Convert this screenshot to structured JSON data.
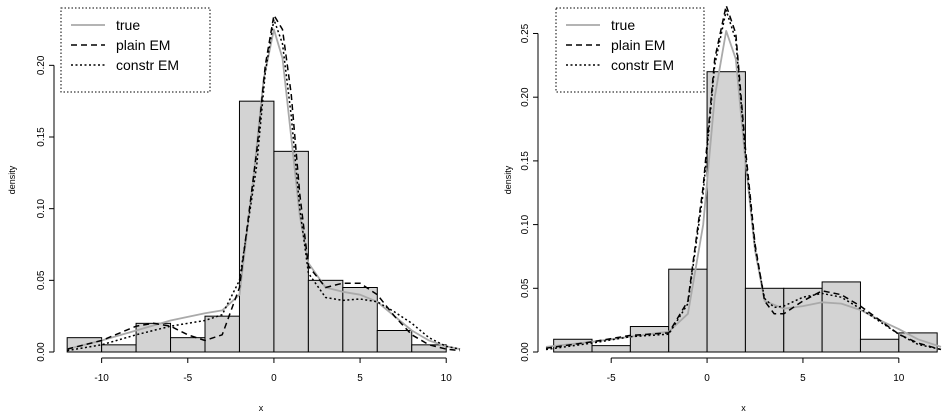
{
  "colors": {
    "bar_fill": "#d3d3d3",
    "true_line": "#aaaaaa",
    "ink": "#000000"
  },
  "chart_data": [
    {
      "type": "histogram",
      "xlabel": "x",
      "ylabel": "density",
      "xlim": [
        -12.3,
        10.8
      ],
      "ylim": [
        0,
        0.24
      ],
      "xticks": [
        -10,
        -5,
        0,
        5,
        10
      ],
      "yticks": [
        0.0,
        0.05,
        0.1,
        0.15,
        0.2
      ],
      "ytick_labels": [
        "0.00",
        "0.05",
        "0.10",
        "0.15",
        "0.20"
      ],
      "legend_position": "top-left",
      "bins": [
        {
          "x0": -12,
          "x1": -10,
          "density": 0.01
        },
        {
          "x0": -10,
          "x1": -8,
          "density": 0.005
        },
        {
          "x0": -8,
          "x1": -6,
          "density": 0.02
        },
        {
          "x0": -6,
          "x1": -4,
          "density": 0.01
        },
        {
          "x0": -4,
          "x1": -2,
          "density": 0.025
        },
        {
          "x0": -2,
          "x1": 0,
          "density": 0.175
        },
        {
          "x0": 0,
          "x1": 2,
          "density": 0.14
        },
        {
          "x0": 2,
          "x1": 4,
          "density": 0.05
        },
        {
          "x0": 4,
          "x1": 6,
          "density": 0.045
        },
        {
          "x0": 6,
          "x1": 8,
          "density": 0.015
        },
        {
          "x0": 8,
          "x1": 10,
          "density": 0.005
        }
      ],
      "series": [
        {
          "name": "true",
          "style": "solid",
          "color": "#aaaaaa",
          "points": [
            [
              -12,
              0.002
            ],
            [
              -10,
              0.008
            ],
            [
              -8,
              0.015
            ],
            [
              -6,
              0.022
            ],
            [
              -4,
              0.027
            ],
            [
              -3,
              0.029
            ],
            [
              -2,
              0.04
            ],
            [
              -1.2,
              0.12
            ],
            [
              -0.6,
              0.19
            ],
            [
              0,
              0.225
            ],
            [
              0.5,
              0.205
            ],
            [
              1,
              0.15
            ],
            [
              1.5,
              0.095
            ],
            [
              2,
              0.062
            ],
            [
              3,
              0.045
            ],
            [
              4,
              0.042
            ],
            [
              5,
              0.04
            ],
            [
              6,
              0.035
            ],
            [
              7,
              0.025
            ],
            [
              8,
              0.015
            ],
            [
              9,
              0.008
            ],
            [
              10,
              0.004
            ],
            [
              10.8,
              0.002
            ]
          ]
        },
        {
          "name": "plain EM",
          "style": "dashed",
          "color": "#000000",
          "points": [
            [
              -12,
              0.002
            ],
            [
              -10,
              0.008
            ],
            [
              -8,
              0.018
            ],
            [
              -7,
              0.02
            ],
            [
              -6,
              0.018
            ],
            [
              -5,
              0.012
            ],
            [
              -4,
              0.008
            ],
            [
              -3,
              0.012
            ],
            [
              -2,
              0.045
            ],
            [
              -1,
              0.14
            ],
            [
              -0.5,
              0.2
            ],
            [
              0,
              0.235
            ],
            [
              0.5,
              0.225
            ],
            [
              1,
              0.18
            ],
            [
              1.5,
              0.11
            ],
            [
              2,
              0.06
            ],
            [
              3,
              0.045
            ],
            [
              4,
              0.048
            ],
            [
              5,
              0.048
            ],
            [
              6,
              0.04
            ],
            [
              7,
              0.025
            ],
            [
              8,
              0.012
            ],
            [
              9,
              0.005
            ],
            [
              10,
              0.002
            ],
            [
              10.8,
              0.001
            ]
          ]
        },
        {
          "name": "constr EM",
          "style": "dotted",
          "color": "#000000",
          "points": [
            [
              -12,
              0.001
            ],
            [
              -10,
              0.005
            ],
            [
              -8,
              0.012
            ],
            [
              -6,
              0.018
            ],
            [
              -5,
              0.02
            ],
            [
              -4,
              0.022
            ],
            [
              -3,
              0.026
            ],
            [
              -2,
              0.05
            ],
            [
              -1,
              0.13
            ],
            [
              -0.5,
              0.195
            ],
            [
              0,
              0.232
            ],
            [
              0.5,
              0.215
            ],
            [
              1,
              0.165
            ],
            [
              1.5,
              0.1
            ],
            [
              2,
              0.055
            ],
            [
              3,
              0.038
            ],
            [
              4,
              0.036
            ],
            [
              5,
              0.037
            ],
            [
              6,
              0.035
            ],
            [
              7,
              0.028
            ],
            [
              8,
              0.02
            ],
            [
              9,
              0.01
            ],
            [
              10,
              0.004
            ],
            [
              10.8,
              0.002
            ]
          ]
        }
      ]
    },
    {
      "type": "histogram",
      "xlabel": "x",
      "ylabel": "density",
      "xlim": [
        -8.4,
        12.2
      ],
      "ylim": [
        0,
        0.27
      ],
      "xticks": [
        -5,
        0,
        5,
        10
      ],
      "yticks": [
        0.0,
        0.05,
        0.1,
        0.15,
        0.2,
        0.25
      ],
      "ytick_labels": [
        "0.00",
        "0.05",
        "0.10",
        "0.15",
        "0.20",
        "0.25"
      ],
      "legend_position": "top-left",
      "bins": [
        {
          "x0": -8,
          "x1": -6,
          "density": 0.01
        },
        {
          "x0": -6,
          "x1": -4,
          "density": 0.005
        },
        {
          "x0": -4,
          "x1": -2,
          "density": 0.02
        },
        {
          "x0": -2,
          "x1": 0,
          "density": 0.065
        },
        {
          "x0": 0,
          "x1": 2,
          "density": 0.22
        },
        {
          "x0": 2,
          "x1": 4,
          "density": 0.05
        },
        {
          "x0": 4,
          "x1": 6,
          "density": 0.05
        },
        {
          "x0": 6,
          "x1": 8,
          "density": 0.055
        },
        {
          "x0": 8,
          "x1": 10,
          "density": 0.01
        },
        {
          "x0": 10,
          "x1": 12,
          "density": 0.015
        }
      ],
      "series": [
        {
          "name": "true",
          "style": "solid",
          "color": "#aaaaaa",
          "points": [
            [
              -8.4,
              0.004
            ],
            [
              -6,
              0.008
            ],
            [
              -4,
              0.012
            ],
            [
              -2,
              0.016
            ],
            [
              -1,
              0.03
            ],
            [
              -0.2,
              0.1
            ],
            [
              0.4,
              0.2
            ],
            [
              1,
              0.252
            ],
            [
              1.5,
              0.23
            ],
            [
              2,
              0.15
            ],
            [
              2.5,
              0.08
            ],
            [
              3,
              0.04
            ],
            [
              4,
              0.034
            ],
            [
              5,
              0.036
            ],
            [
              6,
              0.039
            ],
            [
              7,
              0.038
            ],
            [
              8,
              0.033
            ],
            [
              9,
              0.025
            ],
            [
              10,
              0.018
            ],
            [
              11,
              0.01
            ],
            [
              12.2,
              0.004
            ]
          ]
        },
        {
          "name": "plain EM",
          "style": "dashed",
          "color": "#000000",
          "points": [
            [
              -8.4,
              0.003
            ],
            [
              -6,
              0.008
            ],
            [
              -4,
              0.013
            ],
            [
              -2,
              0.015
            ],
            [
              -1,
              0.04
            ],
            [
              -0.2,
              0.13
            ],
            [
              0.4,
              0.23
            ],
            [
              1,
              0.272
            ],
            [
              1.5,
              0.25
            ],
            [
              2,
              0.16
            ],
            [
              2.5,
              0.085
            ],
            [
              3,
              0.04
            ],
            [
              3.5,
              0.03
            ],
            [
              4,
              0.03
            ],
            [
              5,
              0.04
            ],
            [
              6,
              0.048
            ],
            [
              7,
              0.045
            ],
            [
              8,
              0.036
            ],
            [
              9,
              0.025
            ],
            [
              10,
              0.014
            ],
            [
              11,
              0.007
            ],
            [
              12.2,
              0.002
            ]
          ]
        },
        {
          "name": "constr EM",
          "style": "dotted",
          "color": "#000000",
          "points": [
            [
              -8.4,
              0.002
            ],
            [
              -6,
              0.007
            ],
            [
              -4,
              0.012
            ],
            [
              -2,
              0.014
            ],
            [
              -1,
              0.038
            ],
            [
              -0.2,
              0.125
            ],
            [
              0.4,
              0.225
            ],
            [
              1,
              0.268
            ],
            [
              1.5,
              0.245
            ],
            [
              2,
              0.155
            ],
            [
              2.5,
              0.082
            ],
            [
              3,
              0.042
            ],
            [
              3.5,
              0.035
            ],
            [
              4,
              0.036
            ],
            [
              5,
              0.043
            ],
            [
              6,
              0.046
            ],
            [
              7,
              0.043
            ],
            [
              8,
              0.034
            ],
            [
              9,
              0.024
            ],
            [
              10,
              0.014
            ],
            [
              11,
              0.006
            ],
            [
              12.2,
              0.002
            ]
          ]
        }
      ]
    }
  ]
}
